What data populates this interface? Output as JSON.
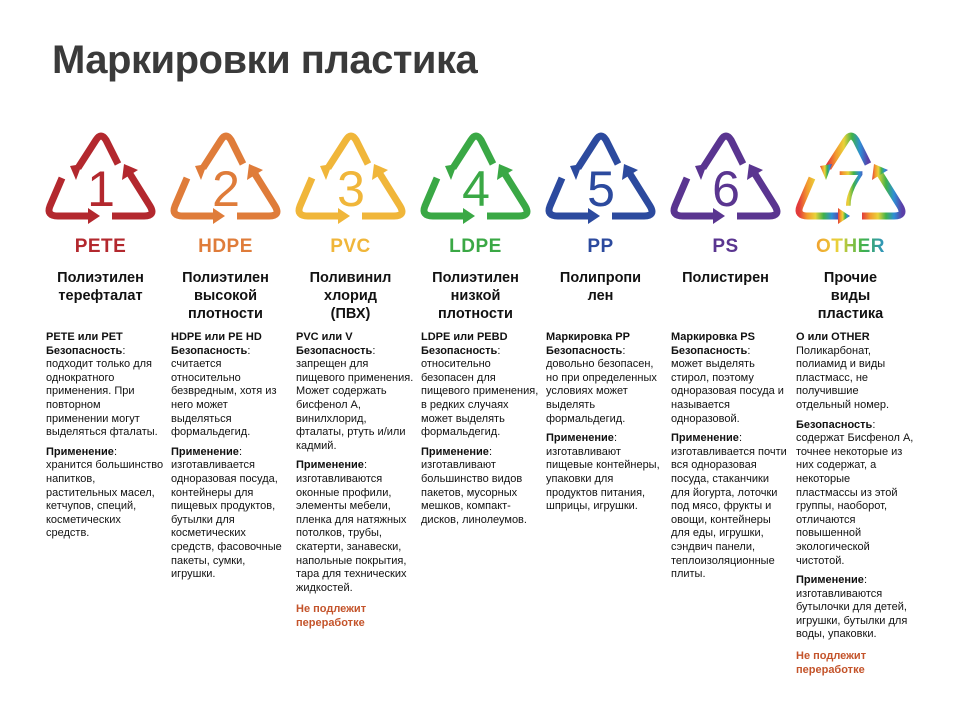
{
  "title": "Маркировки пластика",
  "columns": [
    {
      "num": "1",
      "code": "PETE",
      "color": "#b3282e",
      "heading": [
        "Полиэтилен",
        "терефталат"
      ],
      "subtitle": "PETE или PET",
      "intro": "",
      "sections": [
        {
          "label": "Безопасность",
          "text": "подходит только для однократного применения. При повторном применении могут выделяться фталаты."
        },
        {
          "label": "Применение",
          "text": "хранится большинство напитков, растительных масел, кетчупов, специй, косметических средств."
        }
      ],
      "warning": ""
    },
    {
      "num": "2",
      "code": "HDPE",
      "color": "#df7c3a",
      "heading": [
        "Полиэтилен",
        "высокой",
        "плотности"
      ],
      "subtitle": "HDPE или PE HD",
      "intro": "",
      "sections": [
        {
          "label": "Безопасность",
          "text": "считается относительно безвредным, хотя из него может выделяться формальдегид."
        },
        {
          "label": "Применение",
          "text": "изготавливается одноразовая посуда, контейнеры для пищевых продуктов, бутылки для косметических средств, фасовочные пакеты, сумки, игрушки."
        }
      ],
      "warning": ""
    },
    {
      "num": "3",
      "code": "PVC",
      "color": "#f0b63a",
      "heading": [
        "Поливинил",
        "хлорид",
        "(ПВХ)"
      ],
      "subtitle": "PVC или V",
      "intro": "",
      "sections": [
        {
          "label": "Безопасность",
          "text": "запрещен для пищевого применения. Может содержать бисфенол А, винилхлорид, фталаты, ртуть и/или кадмий."
        },
        {
          "label": "Применение",
          "text": "изготавливаются оконные профили, элементы мебели, пленка для натяжных потолков, трубы, скатерти, занавески, напольные покрытия, тара для технических жидкостей."
        }
      ],
      "warning": "Не подлежит переработке"
    },
    {
      "num": "4",
      "code": "LDPE",
      "color": "#3aa845",
      "heading": [
        "Полиэтилен",
        "низкой",
        "плотности"
      ],
      "subtitle": "LDPE или PEBD",
      "intro": "",
      "sections": [
        {
          "label": "Безопасность",
          "text": "относительно безопасен для пищевого применения, в редких случаях может выделять формальдегид."
        },
        {
          "label": "Применение",
          "text": "изготавливают большинство видов пакетов, мусорных мешков, компакт-дисков, линолеумов."
        }
      ],
      "warning": ""
    },
    {
      "num": "5",
      "code": "PP",
      "color": "#2c4a9e",
      "heading": [
        "Полипропи",
        "лен"
      ],
      "subtitle": "Маркировка PP",
      "intro": "",
      "sections": [
        {
          "label": "Безопасность",
          "text": "довольно безопасен, но при определенных условиях может выделять формальдегид."
        },
        {
          "label": "Применение",
          "text": "изготавливают пищевые контейнеры, упаковки для продуктов питания, шприцы, игрушки."
        }
      ],
      "warning": ""
    },
    {
      "num": "6",
      "code": "PS",
      "color": "#5a3590",
      "heading": [
        "Полистирен"
      ],
      "subtitle": "Маркировка PS",
      "intro": "",
      "sections": [
        {
          "label": "Безопасность",
          "text": "может выделять стирол, поэтому одноразовая посуда и называется одноразовой."
        },
        {
          "label": "Применение",
          "text": "изготавливается почти вся одноразовая посуда, стаканчики для йогурта, лоточки под мясо, фрукты и овощи, контейнеры для еды, игрушки, сэндвич панели, теплоизоляционные плиты."
        }
      ],
      "warning": ""
    },
    {
      "num": "7",
      "code": "OTHER",
      "color": "rainbow",
      "heading": [
        "Прочие",
        "виды",
        "пластика"
      ],
      "subtitle": "О или OTHER",
      "intro": "Поликарбонат, полиамид и виды пластмасс, не получившие отдельный номер.",
      "sections": [
        {
          "label": "Безопасность",
          "text": "содержат Бисфенол А, точнее некоторые из них содержат, а некоторые пластмассы из этой группы, наоборот, отличаются повышенной экологической чистотой."
        },
        {
          "label": "Применение",
          "text": "изготавливаются бутылочки для детей, игрушки, бутылки для воды, упаковки."
        }
      ],
      "warning": "Не подлежит переработке"
    }
  ],
  "rainbow_colors": [
    "#e23b3b",
    "#f29a2e",
    "#e9d23a",
    "#3fb24a",
    "#2d8fd6",
    "#5a3fa8"
  ]
}
